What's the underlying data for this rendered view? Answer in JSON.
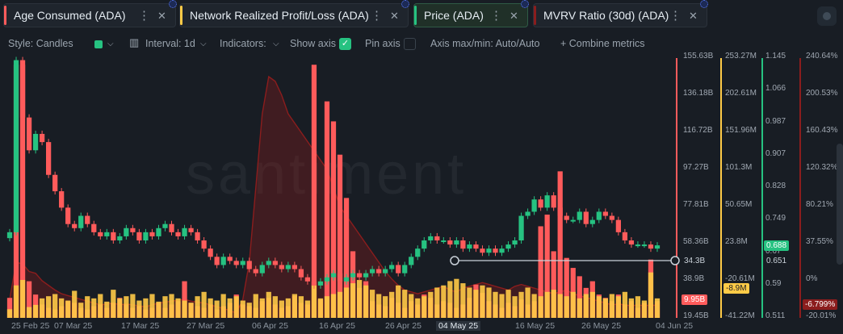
{
  "tabs": [
    {
      "label": "Age Consumed (ADA)",
      "color": "#ff5b5b"
    },
    {
      "label": "Network Realized Profit/Loss (ADA)",
      "color": "#ffcb47"
    },
    {
      "label": "Price (ADA)",
      "color": "#26c281"
    },
    {
      "label": "MVRV Ratio (30d) (ADA)",
      "color": "#8b1d1d"
    }
  ],
  "toolbar": {
    "style_label": "Style: Candles",
    "interval_label": "Interval: 1d",
    "indicators_label": "Indicators:",
    "show_axis_label": "Show axis",
    "pin_axis_label": "Pin axis",
    "axis_maxmin_label": "Axis max/min: Auto/Auto",
    "combine_label": "+ Combine metrics",
    "candle_color": "#26c281"
  },
  "watermark": "santiment",
  "x_axis": [
    "25 Feb 25",
    "07 Mar 25",
    "17 Mar 25",
    "27 Mar 25",
    "06 Apr 25",
    "16 Apr 25",
    "26 Apr 25",
    "04 May 25",
    "16 May 25",
    "26 May 25",
    "04 Jun 25"
  ],
  "axes": {
    "age_consumed": [
      "155.63B",
      "136.18B",
      "116.72B",
      "97.27B",
      "77.81B",
      "58.36B",
      "38.9B",
      "19.45B"
    ],
    "age_consumed_current": "9.95B",
    "nrpl": [
      "253.27M",
      "202.61M",
      "151.96M",
      "101.3M",
      "50.65M",
      "23.8M",
      "-20.61M",
      "-41.22M"
    ],
    "nrpl_current": "-8.9M",
    "price": [
      "1.145",
      "1.066",
      "0.987",
      "0.907",
      "0.828",
      "0.749",
      "0.67",
      "0.59",
      "0.511"
    ],
    "price_current": "0.688",
    "price_hover": "0.651",
    "mvrv": [
      "240.64%",
      "200.53%",
      "160.43%",
      "120.32%",
      "80.21%",
      "37.55%",
      "0%",
      "-20.01%"
    ],
    "mvrv_current": "-6.799%",
    "age_hover": "34.3B"
  },
  "chart_data": {
    "type": "bar",
    "x_range": [
      "25 Feb 25",
      "04 Jun 25"
    ],
    "series": [
      {
        "name": "Age Consumed (ADA)",
        "color": "#ff5b5b",
        "values": [
          12,
          152,
          152,
          22,
          14,
          8,
          6,
          5,
          7,
          10,
          9,
          6,
          5,
          7,
          8,
          6,
          9,
          12,
          8,
          6,
          7,
          5,
          6,
          9,
          6,
          8,
          10,
          22,
          9,
          7,
          6,
          8,
          5,
          7,
          9,
          14,
          8,
          7,
          6,
          10,
          12,
          8,
          6,
          7,
          13,
          9,
          8,
          152,
          11,
          130,
          118,
          98,
          72,
          40,
          18,
          22,
          10,
          8,
          7,
          12,
          9,
          6,
          10,
          8,
          14,
          12,
          8,
          10,
          9,
          6,
          8,
          12,
          20,
          15,
          10,
          8,
          6,
          9,
          7,
          11,
          8,
          10,
          55,
          62,
          40,
          88,
          36,
          30,
          25,
          18,
          22,
          14,
          12,
          10,
          14,
          8,
          10,
          6,
          9,
          35,
          10
        ]
      },
      {
        "name": "Network Realized Profit/Loss (ADA)",
        "color": "#ffcb47",
        "values": [
          8,
          30,
          35,
          10,
          12,
          18,
          20,
          22,
          18,
          16,
          25,
          14,
          20,
          18,
          22,
          15,
          26,
          18,
          20,
          22,
          16,
          18,
          22,
          15,
          20,
          22,
          18,
          16,
          14,
          20,
          24,
          18,
          16,
          22,
          18,
          20,
          16,
          14,
          22,
          18,
          24,
          20,
          16,
          18,
          22,
          20,
          16,
          30,
          18,
          20,
          22,
          24,
          28,
          32,
          35,
          30,
          26,
          22,
          20,
          24,
          30,
          26,
          22,
          18,
          20,
          24,
          28,
          30,
          34,
          36,
          32,
          28,
          26,
          30,
          28,
          24,
          22,
          26,
          20,
          24,
          28,
          22,
          20,
          24,
          26,
          22,
          20,
          24,
          18,
          22,
          24,
          20,
          18,
          22,
          20,
          24,
          18,
          20,
          16,
          42,
          18
        ]
      },
      {
        "name": "Price (ADA)",
        "color": "#26c281",
        "values": [
          0.72,
          1.14,
          1.0,
          0.92,
          0.96,
          0.94,
          0.86,
          0.82,
          0.78,
          0.74,
          0.73,
          0.76,
          0.74,
          0.72,
          0.71,
          0.72,
          0.7,
          0.71,
          0.73,
          0.72,
          0.7,
          0.72,
          0.71,
          0.73,
          0.74,
          0.72,
          0.71,
          0.73,
          0.72,
          0.7,
          0.68,
          0.66,
          0.64,
          0.66,
          0.65,
          0.64,
          0.65,
          0.63,
          0.62,
          0.64,
          0.65,
          0.64,
          0.63,
          0.64,
          0.63,
          0.61,
          0.6,
          0.59,
          0.6,
          0.61,
          0.62,
          0.6,
          0.61,
          0.62,
          0.61,
          0.62,
          0.63,
          0.62,
          0.63,
          0.64,
          0.62,
          0.64,
          0.66,
          0.68,
          0.7,
          0.71,
          0.7,
          0.7,
          0.69,
          0.7,
          0.68,
          0.69,
          0.68,
          0.67,
          0.68,
          0.67,
          0.68,
          0.69,
          0.7,
          0.76,
          0.77,
          0.8,
          0.78,
          0.81,
          0.78,
          0.76,
          0.75,
          0.75,
          0.77,
          0.74,
          0.75,
          0.77,
          0.76,
          0.75,
          0.72,
          0.7,
          0.69,
          0.69,
          0.69,
          0.68,
          0.688
        ]
      },
      {
        "name": "MVRV Ratio (30d) (ADA)",
        "color": "#8b1d1d",
        "values": [
          0,
          40,
          38,
          30,
          28,
          20,
          15,
          10,
          6,
          4,
          2,
          0,
          -2,
          -4,
          -6,
          -5,
          -4,
          -6,
          -5,
          -6,
          -7,
          -8,
          -6,
          -4,
          -3,
          -2,
          -1,
          0,
          -2,
          -3,
          -4,
          -6,
          -8,
          -10,
          -12,
          -15,
          0,
          40,
          120,
          200,
          240,
          235,
          220,
          200,
          190,
          180,
          170,
          160,
          150,
          140,
          120,
          100,
          90,
          80,
          70,
          60,
          50,
          40,
          30,
          22,
          15,
          10,
          8,
          6,
          8,
          10,
          12,
          14,
          10,
          8,
          12,
          14,
          16,
          18,
          16,
          14,
          12,
          10,
          14,
          16,
          14,
          12,
          10,
          8,
          6,
          8,
          10,
          6,
          4,
          2,
          0,
          -2,
          -4,
          -6,
          -5,
          -6,
          -7,
          -6,
          -7,
          -6,
          -6.8
        ]
      }
    ]
  }
}
